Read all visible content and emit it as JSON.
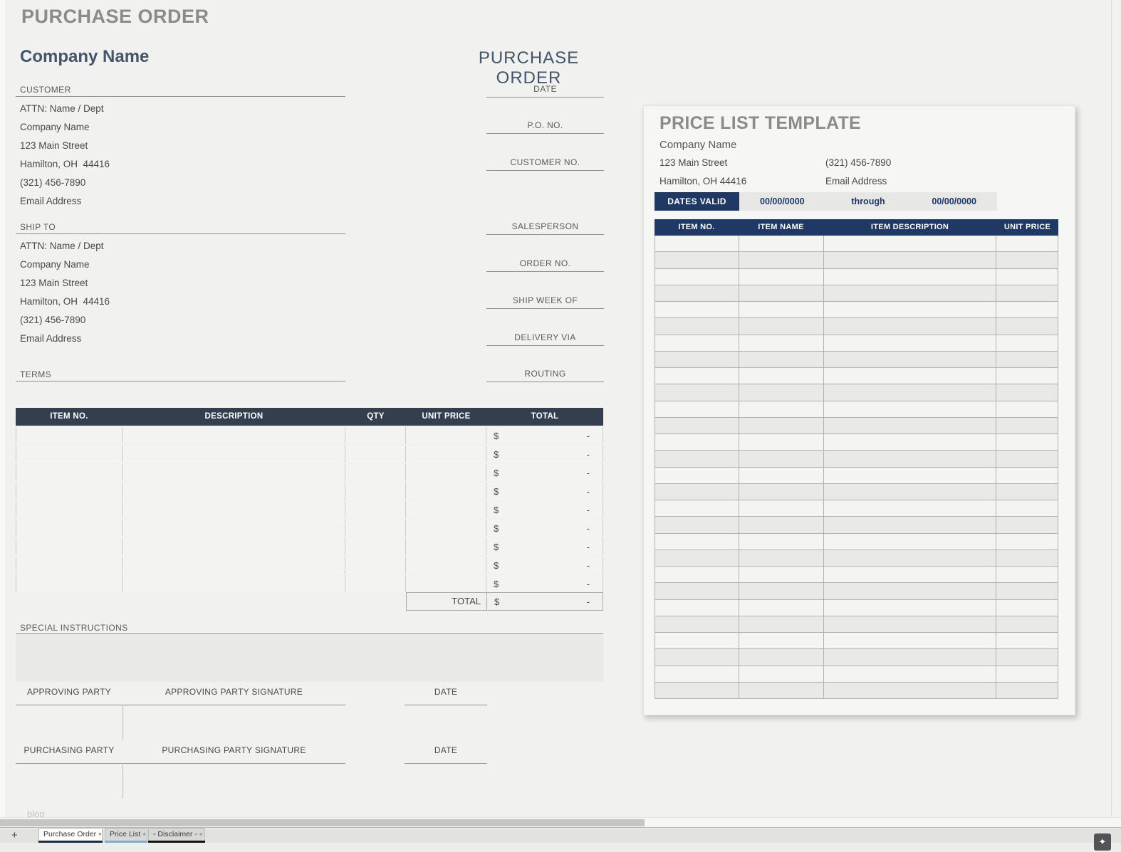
{
  "sheet": {
    "title": "PURCHASE ORDER",
    "watermark": "blog"
  },
  "po": {
    "company_name": "Company Name",
    "doc_title": "PURCHASE ORDER",
    "customer": {
      "label": "CUSTOMER",
      "lines": [
        "ATTN: Name / Dept",
        "Company Name",
        "123 Main Street",
        "Hamilton, OH  44416",
        "(321) 456-7890",
        "Email Address"
      ]
    },
    "ship_to": {
      "label": "SHIP TO",
      "lines": [
        "ATTN: Name / Dept",
        "Company Name",
        "123 Main Street",
        "Hamilton, OH  44416",
        "(321) 456-7890",
        "Email Address"
      ]
    },
    "terms_label": "TERMS",
    "meta_fields": [
      "DATE",
      "P.O. NO.",
      "CUSTOMER NO.",
      "SALESPERSON",
      "ORDER NO.",
      "SHIP WEEK OF",
      "DELIVERY VIA",
      "ROUTING"
    ],
    "items_table": {
      "headers": [
        "ITEM NO.",
        "DESCRIPTION",
        "QTY",
        "UNIT PRICE",
        "TOTAL"
      ],
      "rows": [
        {
          "item_no": "",
          "description": "",
          "qty": "",
          "unit_price": "",
          "currency": "$",
          "amount": "-"
        },
        {
          "item_no": "",
          "description": "",
          "qty": "",
          "unit_price": "",
          "currency": "$",
          "amount": "-"
        },
        {
          "item_no": "",
          "description": "",
          "qty": "",
          "unit_price": "",
          "currency": "$",
          "amount": "-"
        },
        {
          "item_no": "",
          "description": "",
          "qty": "",
          "unit_price": "",
          "currency": "$",
          "amount": "-"
        },
        {
          "item_no": "",
          "description": "",
          "qty": "",
          "unit_price": "",
          "currency": "$",
          "amount": "-"
        },
        {
          "item_no": "",
          "description": "",
          "qty": "",
          "unit_price": "",
          "currency": "$",
          "amount": "-"
        },
        {
          "item_no": "",
          "description": "",
          "qty": "",
          "unit_price": "",
          "currency": "$",
          "amount": "-"
        },
        {
          "item_no": "",
          "description": "",
          "qty": "",
          "unit_price": "",
          "currency": "$",
          "amount": "-"
        },
        {
          "item_no": "",
          "description": "",
          "qty": "",
          "unit_price": "",
          "currency": "$",
          "amount": "-"
        }
      ],
      "total_row": {
        "label": "TOTAL",
        "currency": "$",
        "amount": "-"
      }
    },
    "special_instructions_label": "SPECIAL INSTRUCTIONS",
    "signature_rows": [
      {
        "party": "APPROVING PARTY",
        "signature": "APPROVING PARTY SIGNATURE",
        "date": "DATE"
      },
      {
        "party": "PURCHASING PARTY",
        "signature": "PURCHASING PARTY SIGNATURE",
        "date": "DATE"
      }
    ]
  },
  "price_list": {
    "title": "PRICE LIST TEMPLATE",
    "company_name": "Company Name",
    "contact_left": [
      "123 Main Street",
      "Hamilton, OH 44416"
    ],
    "contact_right": [
      "(321) 456-7890",
      "Email Address"
    ],
    "dates_valid": {
      "label": "DATES VALID",
      "from": "00/00/0000",
      "through": "through",
      "to": "00/00/0000"
    },
    "table": {
      "headers": [
        "ITEM NO.",
        "ITEM NAME",
        "ITEM DESCRIPTION",
        "UNIT PRICE"
      ],
      "row_count": 28,
      "rows_are_empty": true
    }
  },
  "tab_bar": {
    "add_sheet_icon": "+",
    "all_sheets_icon": "≡",
    "tabs": [
      {
        "label": "Purchase Order",
        "active": true,
        "underline_color": "#1b2c3d"
      },
      {
        "label": "Price List",
        "active": false,
        "underline_color": "#84abce"
      },
      {
        "label": "- Disclaimer -",
        "active": false,
        "underline_color": "#121212"
      }
    ],
    "explore_icon": "✦"
  },
  "colors": {
    "page_bg": "#f1f1ef",
    "po_header_slate": "#333f4f",
    "price_list_navy": "#1f3864",
    "heading_blue": "#44546a",
    "title_gray": "#8b8b8b"
  }
}
